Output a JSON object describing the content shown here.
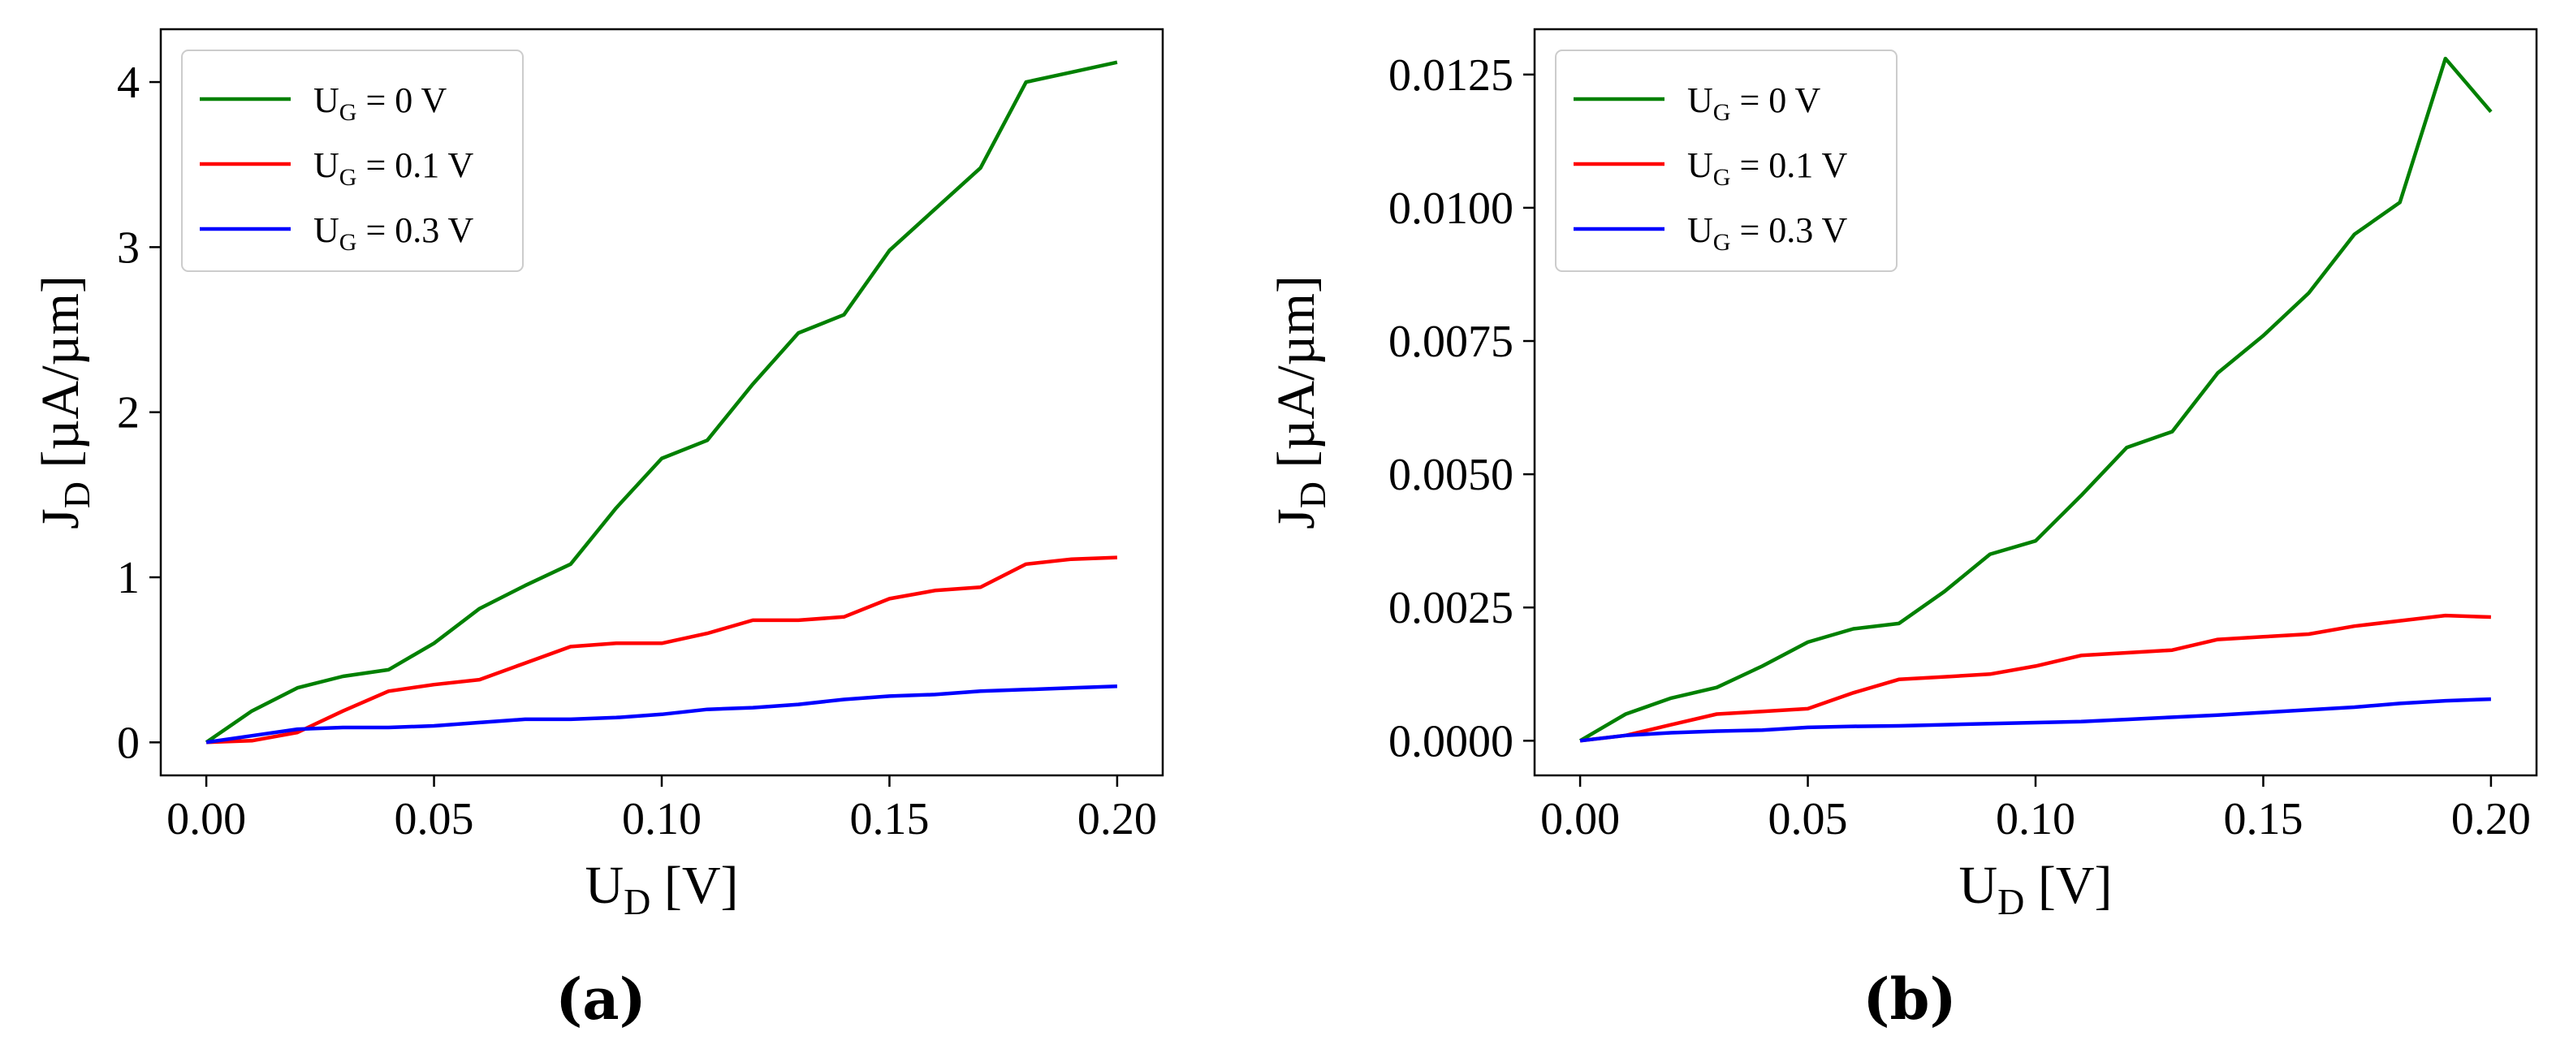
{
  "chart_data": [
    {
      "type": "line",
      "caption": "(a)",
      "xlabel": {
        "main": "U",
        "sub": "D",
        "rest": " [V]"
      },
      "ylabel": {
        "main": "J",
        "sub": "D",
        "rest": " [µA/µm]"
      },
      "xlim": [
        -0.01,
        0.21
      ],
      "ylim": [
        -0.2,
        4.32
      ],
      "xticks": [
        0.0,
        0.05,
        0.1,
        0.15,
        0.2
      ],
      "xtick_labels": [
        "0.00",
        "0.05",
        "0.10",
        "0.15",
        "0.20"
      ],
      "yticks": [
        0,
        1,
        2,
        3,
        4
      ],
      "ytick_labels": [
        "0",
        "1",
        "2",
        "3",
        "4"
      ],
      "legend_position": "top-left",
      "x": [
        0.0,
        0.01,
        0.02,
        0.03,
        0.04,
        0.05,
        0.06,
        0.07,
        0.08,
        0.09,
        0.1,
        0.11,
        0.12,
        0.13,
        0.14,
        0.15,
        0.16,
        0.17,
        0.18,
        0.19,
        0.2
      ],
      "series": [
        {
          "name": "UG = 0 V",
          "label_main": "U",
          "label_sub": "G",
          "label_rest": " = 0 V",
          "color": "#008000",
          "values": [
            0.0,
            0.19,
            0.33,
            0.4,
            0.44,
            0.6,
            0.81,
            0.95,
            1.08,
            1.42,
            1.72,
            1.83,
            2.17,
            2.48,
            2.59,
            2.98,
            3.23,
            3.48,
            4.0,
            4.06,
            4.12
          ]
        },
        {
          "name": "UG = 0.1 V",
          "label_main": "U",
          "label_sub": "G",
          "label_rest": " = 0.1 V",
          "color": "#ff0000",
          "values": [
            0.0,
            0.01,
            0.06,
            0.19,
            0.31,
            0.35,
            0.38,
            0.48,
            0.58,
            0.6,
            0.6,
            0.66,
            0.74,
            0.74,
            0.76,
            0.87,
            0.92,
            0.94,
            1.08,
            1.11,
            1.12
          ]
        },
        {
          "name": "UG = 0.3 V",
          "label_main": "U",
          "label_sub": "G",
          "label_rest": " = 0.3 V",
          "color": "#0000ff",
          "values": [
            0.0,
            0.04,
            0.08,
            0.09,
            0.09,
            0.1,
            0.12,
            0.14,
            0.14,
            0.15,
            0.17,
            0.2,
            0.21,
            0.23,
            0.26,
            0.28,
            0.29,
            0.31,
            0.32,
            0.33,
            0.34
          ]
        }
      ]
    },
    {
      "type": "line",
      "caption": "(b)",
      "xlabel": {
        "main": "U",
        "sub": "D",
        "rest": " [V]"
      },
      "ylabel": {
        "main": "J",
        "sub": "D",
        "rest": " [µA/µm]"
      },
      "xlim": [
        -0.01,
        0.21
      ],
      "ylim": [
        -0.00065,
        0.01335
      ],
      "xticks": [
        0.0,
        0.05,
        0.1,
        0.15,
        0.2
      ],
      "xtick_labels": [
        "0.00",
        "0.05",
        "0.10",
        "0.15",
        "0.20"
      ],
      "yticks": [
        0.0,
        0.0025,
        0.005,
        0.0075,
        0.01,
        0.0125
      ],
      "ytick_labels": [
        "0.0000",
        "0.0025",
        "0.0050",
        "0.0075",
        "0.0100",
        "0.0125"
      ],
      "legend_position": "top-left",
      "x": [
        0.0,
        0.01,
        0.02,
        0.03,
        0.04,
        0.05,
        0.06,
        0.07,
        0.08,
        0.09,
        0.1,
        0.11,
        0.12,
        0.13,
        0.14,
        0.15,
        0.16,
        0.17,
        0.18,
        0.19,
        0.2
      ],
      "series": [
        {
          "name": "UG = 0 V",
          "label_main": "U",
          "label_sub": "G",
          "label_rest": " = 0 V",
          "color": "#008000",
          "values": [
            0.0,
            0.0005,
            0.0008,
            0.001,
            0.0014,
            0.00185,
            0.0021,
            0.0022,
            0.0028,
            0.0035,
            0.00375,
            0.0046,
            0.0055,
            0.0058,
            0.0069,
            0.0076,
            0.0084,
            0.0095,
            0.0101,
            0.0128,
            0.0118
          ]
        },
        {
          "name": "UG = 0.1 V",
          "label_main": "U",
          "label_sub": "G",
          "label_rest": " = 0.1 V",
          "color": "#ff0000",
          "values": [
            0.0,
            0.0001,
            0.0003,
            0.0005,
            0.00055,
            0.0006,
            0.0009,
            0.00115,
            0.0012,
            0.00125,
            0.0014,
            0.0016,
            0.00165,
            0.0017,
            0.0019,
            0.00195,
            0.002,
            0.00215,
            0.00225,
            0.00235,
            0.00232
          ]
        },
        {
          "name": "UG = 0.3 V",
          "label_main": "U",
          "label_sub": "G",
          "label_rest": " = 0.3 V",
          "color": "#0000ff",
          "values": [
            0.0,
            0.0001,
            0.00015,
            0.00018,
            0.0002,
            0.00025,
            0.00027,
            0.00028,
            0.0003,
            0.00032,
            0.00034,
            0.00036,
            0.0004,
            0.00044,
            0.00048,
            0.00053,
            0.00058,
            0.00063,
            0.0007,
            0.00075,
            0.00078
          ]
        }
      ]
    }
  ]
}
